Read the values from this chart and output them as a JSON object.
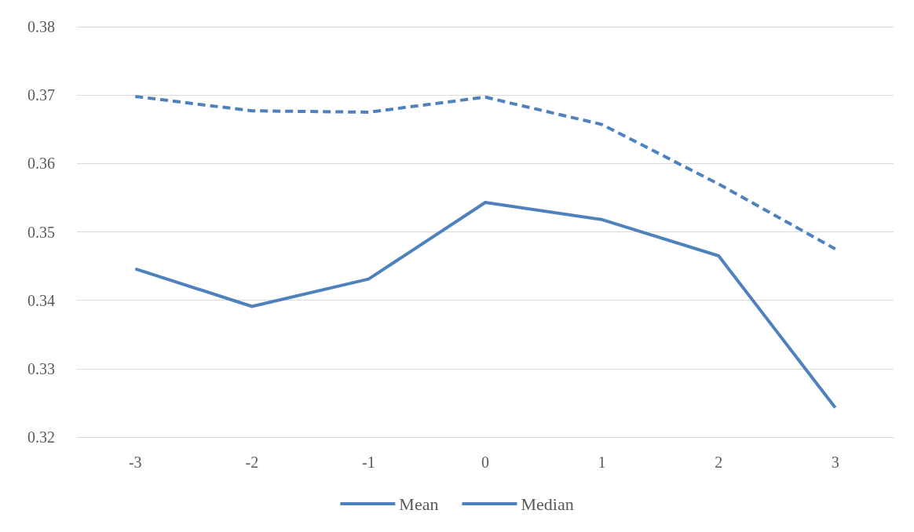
{
  "chart_data": {
    "type": "line",
    "categories": [
      "-3",
      "-2",
      "-1",
      "0",
      "1",
      "2",
      "3"
    ],
    "series": [
      {
        "name": "Mean",
        "color": "#4f81bd",
        "line_style": "solid",
        "values": [
          0.3446,
          0.3391,
          0.3431,
          0.3543,
          0.3518,
          0.3465,
          0.3243
        ]
      },
      {
        "name": "Median",
        "color": "#4f81bd",
        "line_style": "dashed",
        "values": [
          0.3698,
          0.3677,
          0.3675,
          0.3697,
          0.3657,
          0.357,
          0.3475
        ]
      }
    ],
    "ylim": [
      0.32,
      0.38
    ],
    "yticks": [
      0.32,
      0.33,
      0.34,
      0.35,
      0.36,
      0.37,
      0.38
    ],
    "grid": "y",
    "legend": "bottom",
    "marker": "none"
  }
}
